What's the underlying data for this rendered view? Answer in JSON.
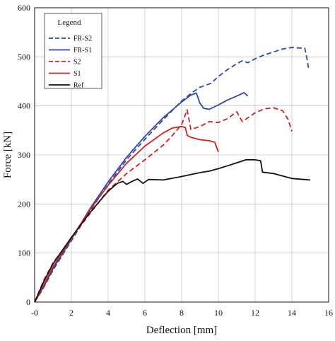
{
  "chart_data": {
    "type": "line",
    "xlabel": "Deflection [mm]",
    "ylabel": "Force [kN]",
    "xlim": [
      0,
      16
    ],
    "ylim": [
      0,
      600
    ],
    "xticks": [
      "-0",
      "2",
      "4",
      "6",
      "8",
      "10",
      "12",
      "14",
      "16"
    ],
    "yticks": [
      "0",
      "100",
      "200",
      "300",
      "400",
      "500",
      "600"
    ],
    "grid": true,
    "legend": {
      "title": "Legend",
      "placement": "top-left"
    },
    "series": [
      {
        "name": "FR-S2",
        "color": "#2f47a8",
        "dashed": true,
        "points": [
          [
            0,
            0
          ],
          [
            0.5,
            30
          ],
          [
            1,
            65
          ],
          [
            2,
            125
          ],
          [
            3,
            185
          ],
          [
            4,
            240
          ],
          [
            5,
            290
          ],
          [
            6,
            332
          ],
          [
            7,
            372
          ],
          [
            8,
            410
          ],
          [
            8.6,
            428
          ],
          [
            9,
            438
          ],
          [
            9.6,
            446
          ],
          [
            10,
            460
          ],
          [
            10.5,
            474
          ],
          [
            11,
            486
          ],
          [
            11.3,
            492
          ],
          [
            11.6,
            488
          ],
          [
            12,
            496
          ],
          [
            12.5,
            504
          ],
          [
            13,
            510
          ],
          [
            13.5,
            516
          ],
          [
            14,
            519
          ],
          [
            14.5,
            518
          ],
          [
            14.7,
            518
          ],
          [
            14.8,
            500
          ],
          [
            14.9,
            478
          ]
        ]
      },
      {
        "name": "FR-S1",
        "color": "#2f47a8",
        "dashed": false,
        "points": [
          [
            0,
            0
          ],
          [
            0.5,
            32
          ],
          [
            1,
            68
          ],
          [
            2,
            128
          ],
          [
            3,
            190
          ],
          [
            4,
            245
          ],
          [
            5,
            295
          ],
          [
            6,
            338
          ],
          [
            7,
            376
          ],
          [
            8,
            408
          ],
          [
            8.5,
            422
          ],
          [
            8.8,
            426
          ],
          [
            9,
            405
          ],
          [
            9.2,
            395
          ],
          [
            9.5,
            393
          ],
          [
            10,
            402
          ],
          [
            10.5,
            412
          ],
          [
            11,
            420
          ],
          [
            11.4,
            427
          ],
          [
            11.6,
            420
          ]
        ]
      },
      {
        "name": "S2",
        "color": "#cc2222",
        "dashed": true,
        "points": [
          [
            0,
            0
          ],
          [
            0.5,
            45
          ],
          [
            1,
            80
          ],
          [
            2,
            130
          ],
          [
            3,
            180
          ],
          [
            4,
            228
          ],
          [
            5,
            262
          ],
          [
            6,
            290
          ],
          [
            7,
            320
          ],
          [
            7.5,
            340
          ],
          [
            8,
            362
          ],
          [
            8.3,
            392
          ],
          [
            8.5,
            352
          ],
          [
            9,
            358
          ],
          [
            9.5,
            368
          ],
          [
            10,
            366
          ],
          [
            10.5,
            374
          ],
          [
            11,
            388
          ],
          [
            11.3,
            368
          ],
          [
            12,
            386
          ],
          [
            12.5,
            394
          ],
          [
            13,
            396
          ],
          [
            13.5,
            390
          ],
          [
            13.8,
            372
          ],
          [
            14,
            348
          ]
        ]
      },
      {
        "name": "S1",
        "color": "#cc2222",
        "dashed": false,
        "points": [
          [
            0,
            0
          ],
          [
            0.5,
            35
          ],
          [
            1,
            72
          ],
          [
            2,
            130
          ],
          [
            3,
            188
          ],
          [
            4,
            238
          ],
          [
            5,
            283
          ],
          [
            6,
            318
          ],
          [
            7,
            345
          ],
          [
            7.5,
            355
          ],
          [
            8,
            358
          ],
          [
            8.2,
            356
          ],
          [
            8.3,
            340
          ],
          [
            8.5,
            336
          ],
          [
            9,
            331
          ],
          [
            9.5,
            329
          ],
          [
            9.8,
            326
          ],
          [
            10,
            306
          ]
        ]
      },
      {
        "name": "Ref",
        "color": "#111111",
        "dashed": false,
        "points": [
          [
            0,
            0
          ],
          [
            0.5,
            42
          ],
          [
            1,
            78
          ],
          [
            2,
            132
          ],
          [
            3,
            182
          ],
          [
            4,
            226
          ],
          [
            4.5,
            242
          ],
          [
            4.8,
            246
          ],
          [
            5,
            240
          ],
          [
            5.3,
            246
          ],
          [
            5.6,
            251
          ],
          [
            5.9,
            242
          ],
          [
            6.2,
            250
          ],
          [
            7,
            249
          ],
          [
            8,
            256
          ],
          [
            9,
            264
          ],
          [
            9.5,
            267
          ],
          [
            10,
            272
          ],
          [
            10.5,
            278
          ],
          [
            11,
            284
          ],
          [
            11.5,
            290
          ],
          [
            12,
            290
          ],
          [
            12.3,
            288
          ],
          [
            12.4,
            265
          ],
          [
            13,
            262
          ],
          [
            14,
            252
          ],
          [
            15,
            249
          ]
        ]
      }
    ]
  }
}
